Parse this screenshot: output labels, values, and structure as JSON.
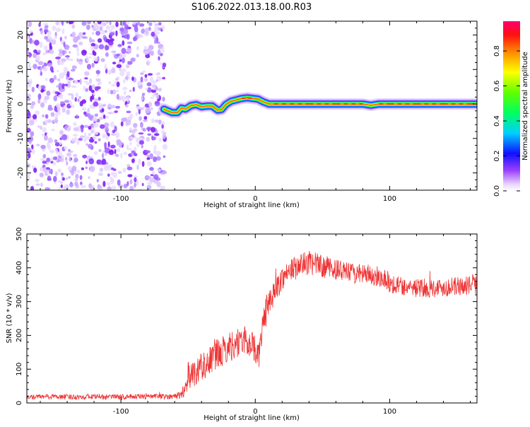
{
  "title": "S106.2022.013.18.00.R03",
  "chart_data": [
    {
      "type": "heatmap",
      "xlabel": "Height of straight line (km)",
      "ylabel": "Frequency (Hz)",
      "xlim": [
        -170,
        165
      ],
      "ylim": [
        -25,
        24
      ],
      "xticks": [
        -100,
        0,
        100
      ],
      "xtick_labels": [
        "-100",
        "0",
        "100"
      ],
      "yticks": [
        -20,
        -10,
        0,
        10,
        20
      ],
      "ytick_labels": [
        "-20",
        "-10",
        "0",
        "10",
        "20"
      ],
      "colorbar": {
        "label": "Normalized spectral amplitude",
        "ticks": [
          0.0,
          0.2,
          0.4,
          0.6,
          0.8
        ],
        "tick_labels": [
          "0.0",
          "0.2",
          "0.4",
          "0.6",
          "0.8"
        ],
        "range": [
          0,
          0.97
        ],
        "colors": [
          "#e8d8ff",
          "#8000ff",
          "#0000ff",
          "#00e0ff",
          "#00ff40",
          "#ffff00",
          "#ff8000",
          "#ff0000",
          "#ff0060"
        ]
      },
      "noise_region_x": [
        -170,
        -65
      ],
      "signal_track": {
        "x": [
          -68,
          -62,
          -58,
          -55,
          -52,
          -48,
          -44,
          -40,
          -36,
          -32,
          -28,
          -25,
          -22,
          -18,
          -14,
          -10,
          -6,
          -2,
          2,
          6,
          10,
          14,
          20,
          40,
          60,
          80,
          86,
          92,
          100,
          120,
          140,
          160,
          165
        ],
        "freq": [
          -1.5,
          -2.5,
          -2.5,
          -1.2,
          -1.5,
          -0.5,
          -0.2,
          -0.8,
          -0.6,
          -0.6,
          -1.8,
          -1.6,
          -0.2,
          0.8,
          1.2,
          1.6,
          1.8,
          1.6,
          1.4,
          0.6,
          0.0,
          0.0,
          0.0,
          0.0,
          0.0,
          0.0,
          -0.4,
          0.0,
          0.0,
          0.0,
          0.0,
          0.0,
          0.0
        ],
        "amplitude": [
          0.3,
          0.5,
          0.6,
          0.5,
          0.6,
          0.6,
          0.7,
          0.6,
          0.6,
          0.7,
          0.6,
          0.6,
          0.6,
          0.7,
          0.7,
          0.8,
          0.8,
          0.8,
          0.7,
          0.6,
          0.5,
          0.8,
          0.85,
          0.85,
          0.85,
          0.85,
          0.6,
          0.8,
          0.85,
          0.85,
          0.85,
          0.85,
          0.85
        ]
      }
    },
    {
      "type": "line",
      "xlabel": "Height of straight line (km)",
      "ylabel": "SNR (10 * v/v)",
      "xlim": [
        -170,
        165
      ],
      "ylim": [
        0,
        500
      ],
      "xticks": [
        -100,
        0,
        100
      ],
      "xtick_labels": [
        "-100",
        "0",
        "100"
      ],
      "yticks": [
        0,
        100,
        200,
        300,
        400,
        500
      ],
      "ytick_labels": [
        "0",
        "100",
        "200",
        "300",
        "400",
        "500"
      ],
      "series": [
        {
          "color": "#ee3333",
          "x": [
            -170,
            -160,
            -150,
            -140,
            -130,
            -120,
            -110,
            -100,
            -90,
            -80,
            -70,
            -60,
            -55,
            -52,
            -50,
            -45,
            -40,
            -35,
            -30,
            -25,
            -20,
            -15,
            -10,
            -5,
            0,
            3,
            5,
            8,
            10,
            15,
            20,
            25,
            30,
            35,
            40,
            45,
            50,
            60,
            70,
            80,
            90,
            95,
            100,
            110,
            120,
            130,
            140,
            150,
            160,
            165
          ],
          "y": [
            18,
            18,
            19,
            18,
            18,
            19,
            18,
            18,
            19,
            19,
            19,
            20,
            25,
            45,
            80,
            90,
            110,
            120,
            140,
            150,
            165,
            175,
            185,
            180,
            160,
            140,
            220,
            270,
            300,
            330,
            370,
            390,
            400,
            410,
            415,
            410,
            405,
            395,
            385,
            380,
            375,
            372,
            355,
            345,
            340,
            340,
            342,
            345,
            348,
            350
          ],
          "noise": [
            8,
            8,
            8,
            8,
            8,
            8,
            8,
            8,
            8,
            8,
            8,
            8,
            15,
            25,
            40,
            40,
            45,
            45,
            45,
            45,
            45,
            45,
            45,
            45,
            40,
            40,
            45,
            45,
            40,
            35,
            35,
            35,
            35,
            35,
            35,
            35,
            35,
            30,
            30,
            30,
            30,
            30,
            30,
            28,
            28,
            28,
            28,
            28,
            28,
            28
          ]
        }
      ]
    }
  ]
}
